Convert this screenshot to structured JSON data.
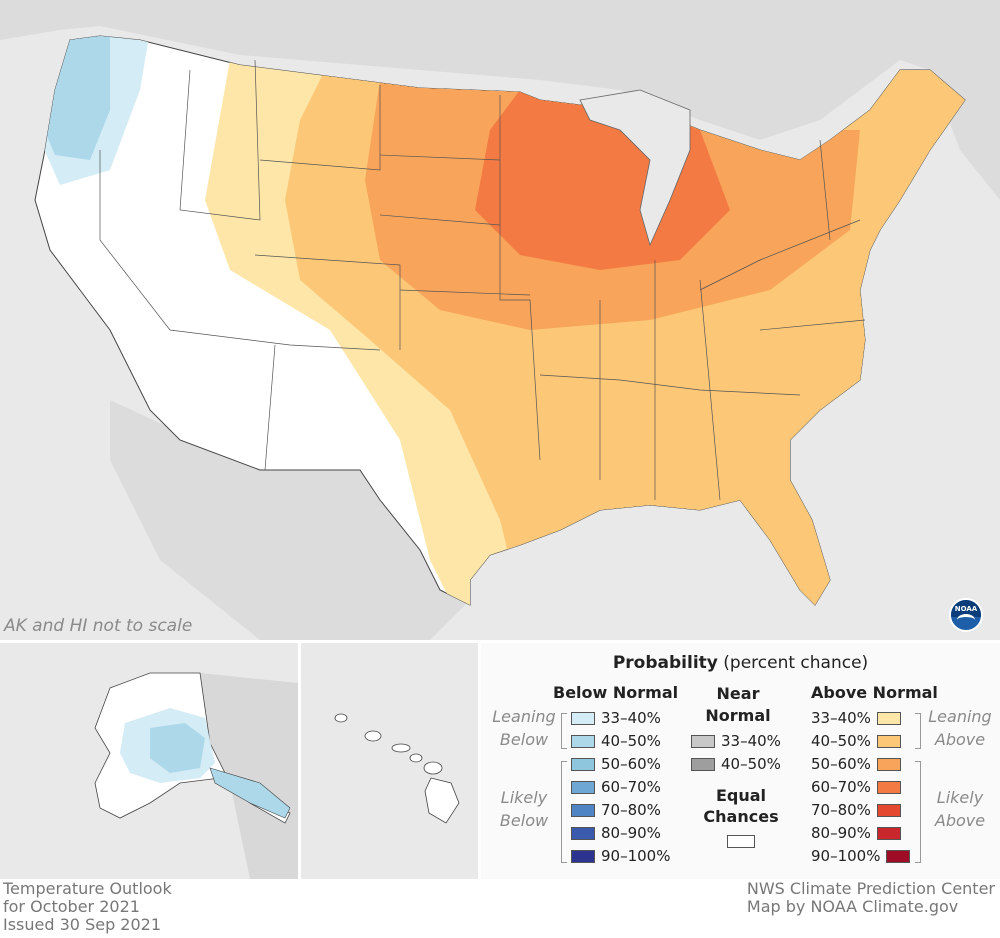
{
  "map": {
    "note": "AK and HI not to scale",
    "logo_text": "NOAA"
  },
  "legend": {
    "title": "Probability",
    "title_suffix": "(percent chance)",
    "below": {
      "header": "Below Normal",
      "leaning_label_1": "Leaning",
      "leaning_label_2": "Below",
      "likely_label_1": "Likely",
      "likely_label_2": "Below",
      "items": [
        {
          "label": "33–40%",
          "color": "#d4ecf5"
        },
        {
          "label": "40–50%",
          "color": "#acd8ea"
        },
        {
          "label": "50–60%",
          "color": "#8ec6de"
        },
        {
          "label": "60–70%",
          "color": "#6ea7d4"
        },
        {
          "label": "70–80%",
          "color": "#4f84c4"
        },
        {
          "label": "80–90%",
          "color": "#3a5bad"
        },
        {
          "label": "90–100%",
          "color": "#2d3490"
        }
      ]
    },
    "near": {
      "header_1": "Near",
      "header_2": "Normal",
      "items": [
        {
          "label": "33–40%",
          "color": "#c8c8c8"
        },
        {
          "label": "40–50%",
          "color": "#9e9e9e"
        }
      ],
      "equal_1": "Equal",
      "equal_2": "Chances",
      "equal_color": "#ffffff"
    },
    "above": {
      "header": "Above Normal",
      "leaning_label_1": "Leaning",
      "leaning_label_2": "Above",
      "likely_label_1": "Likely",
      "likely_label_2": "Above",
      "items": [
        {
          "label": "33–40%",
          "color": "#fde6a8"
        },
        {
          "label": "40–50%",
          "color": "#fcc777"
        },
        {
          "label": "50–60%",
          "color": "#f8a45a"
        },
        {
          "label": "60–70%",
          "color": "#f37a43"
        },
        {
          "label": "70–80%",
          "color": "#e4482f"
        },
        {
          "label": "80–90%",
          "color": "#c9272b"
        },
        {
          "label": "90–100%",
          "color": "#9e0c25"
        }
      ]
    }
  },
  "footer": {
    "left_1": "Temperature Outlook",
    "left_2": "for October 2021",
    "left_3": "Issued 30 Sep 2021",
    "right_1": "NWS Climate Prediction Center",
    "right_2": "Map by NOAA Climate.gov"
  }
}
